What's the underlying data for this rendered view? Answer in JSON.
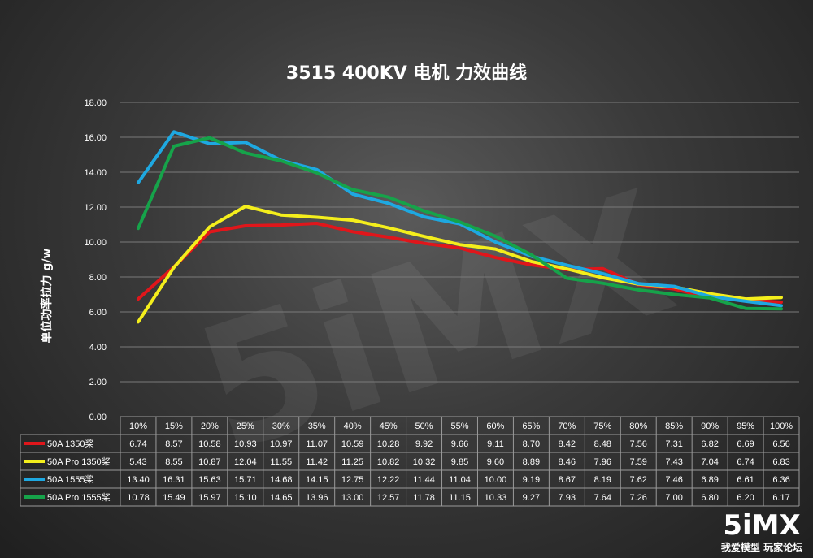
{
  "chart_data": {
    "type": "line",
    "title": "3515 400KV 电机 力效曲线",
    "ylabel": "单位功率拉力 g/w",
    "xlabel": "",
    "ylim": [
      0,
      18
    ],
    "ytick_labels": [
      "0.00",
      "2.00",
      "4.00",
      "6.00",
      "8.00",
      "10.00",
      "12.00",
      "14.00",
      "16.00",
      "18.00"
    ],
    "categories": [
      "10%",
      "15%",
      "20%",
      "25%",
      "30%",
      "35%",
      "40%",
      "45%",
      "50%",
      "55%",
      "60%",
      "65%",
      "70%",
      "75%",
      "80%",
      "85%",
      "90%",
      "95%",
      "100%"
    ],
    "grid": true,
    "legend": "data-table",
    "series": [
      {
        "name": "50A 1350桨",
        "color": "#e0161b",
        "values": [
          6.74,
          8.57,
          10.58,
          10.93,
          10.97,
          11.07,
          10.59,
          10.28,
          9.92,
          9.66,
          9.11,
          8.7,
          8.42,
          8.48,
          7.56,
          7.31,
          6.82,
          6.69,
          6.56
        ],
        "labels": [
          "6.74",
          "8.57",
          "10.58",
          "10.93",
          "10.97",
          "11.07",
          "10.59",
          "10.28",
          "9.92",
          "9.66",
          "9.11",
          "8.70",
          "8.42",
          "8.48",
          "7.56",
          "7.31",
          "6.82",
          "6.69",
          "6.56"
        ]
      },
      {
        "name": "50A Pro 1350桨",
        "color": "#f4ee1c",
        "values": [
          5.43,
          8.55,
          10.87,
          12.04,
          11.55,
          11.42,
          11.25,
          10.82,
          10.32,
          9.85,
          9.6,
          8.89,
          8.46,
          7.96,
          7.59,
          7.43,
          7.04,
          6.74,
          6.83
        ],
        "labels": [
          "5.43",
          "8.55",
          "10.87",
          "12.04",
          "11.55",
          "11.42",
          "11.25",
          "10.82",
          "10.32",
          "9.85",
          "9.60",
          "8.89",
          "8.46",
          "7.96",
          "7.59",
          "7.43",
          "7.04",
          "6.74",
          "6.83"
        ]
      },
      {
        "name": "50A 1555桨",
        "color": "#1ea8e1",
        "values": [
          13.4,
          16.31,
          15.63,
          15.71,
          14.68,
          14.15,
          12.75,
          12.22,
          11.44,
          11.04,
          10.0,
          9.19,
          8.67,
          8.19,
          7.62,
          7.46,
          6.89,
          6.61,
          6.36
        ],
        "labels": [
          "13.40",
          "16.31",
          "15.63",
          "15.71",
          "14.68",
          "14.15",
          "12.75",
          "12.22",
          "11.44",
          "11.04",
          "10.00",
          "9.19",
          "8.67",
          "8.19",
          "7.62",
          "7.46",
          "6.89",
          "6.61",
          "6.36"
        ]
      },
      {
        "name": "50A Pro 1555桨",
        "color": "#16a34a",
        "values": [
          10.78,
          15.49,
          15.97,
          15.1,
          14.65,
          13.96,
          13.0,
          12.57,
          11.78,
          11.15,
          10.33,
          9.27,
          7.93,
          7.64,
          7.26,
          7.0,
          6.8,
          6.2,
          6.17
        ],
        "labels": [
          "10.78",
          "15.49",
          "15.97",
          "15.10",
          "14.65",
          "13.96",
          "13.00",
          "12.57",
          "11.78",
          "11.15",
          "10.33",
          "9.27",
          "7.93",
          "7.64",
          "7.26",
          "7.00",
          "6.80",
          "6.20",
          "6.17"
        ]
      }
    ]
  },
  "watermark": {
    "text": "5iMX"
  },
  "logo": {
    "main": "5iMX",
    "sub": "我爱模型 玩家论坛"
  }
}
